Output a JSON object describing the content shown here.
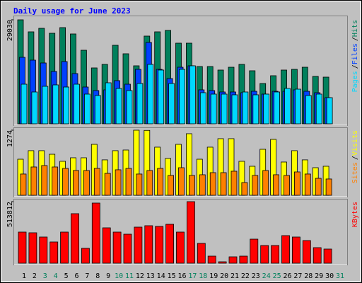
{
  "chart_data": [
    {
      "type": "bar",
      "title": "Daily usage for June 2023",
      "ylim": [
        0,
        29030
      ],
      "yticks": [
        29030
      ],
      "legend_separator": "/",
      "series": [
        {
          "name": "Hits",
          "color": "#00805C",
          "values": [
            29030,
            25675,
            26663,
            25280,
            26860,
            25083,
            20540,
            15603,
            16590,
            21923,
            19553,
            16195,
            24490,
            25675,
            26070,
            22515,
            22515,
            15998,
            15998,
            15010,
            15800,
            16590,
            14813,
            11258,
            13430,
            15010,
            15208,
            15800,
            13233,
            13035,
            null
          ]
        },
        {
          "name": "Files",
          "color": "#0040FF",
          "values": [
            18565,
            17775,
            16985,
            14615,
            17380,
            14023,
            10270,
            9283,
            9480,
            12048,
            11060,
            15208,
            22713,
            15208,
            12640,
            15800,
            16195,
            9480,
            9283,
            8888,
            8888,
            8690,
            9085,
            8295,
            9085,
            9085,
            9480,
            9085,
            8690,
            7308,
            null
          ]
        },
        {
          "name": "Pages",
          "color": "#00D8FF",
          "values": [
            11060,
            8888,
            10468,
            10863,
            10270,
            11060,
            8295,
            7900,
            11455,
            9875,
            9283,
            11258,
            16590,
            15010,
            11258,
            15208,
            16195,
            8690,
            8295,
            8295,
            8098,
            8888,
            8098,
            8295,
            8888,
            9875,
            9678,
            7900,
            8295,
            7308,
            null
          ]
        }
      ]
    },
    {
      "type": "bar",
      "ylim": [
        0,
        1274
      ],
      "yticks": [
        1274
      ],
      "legend_separator": "/",
      "series": [
        {
          "name": "Visits",
          "color": "#FFFF00",
          "values": [
            706,
            873,
            873,
            803,
            665,
            734,
            734,
            997,
            693,
            873,
            886,
            1274,
            1270,
            942,
            720,
            997,
            1205,
            706,
            942,
            1108,
            1108,
            665,
            568,
            900,
            1094,
            651,
            873,
            693,
            540,
            568,
            null
          ]
        },
        {
          "name": "Sites",
          "color": "#FF8000",
          "values": [
            416,
            554,
            582,
            554,
            526,
            485,
            485,
            526,
            429,
            499,
            526,
            416,
            485,
            526,
            388,
            540,
            388,
            402,
            443,
            443,
            471,
            249,
            388,
            485,
            402,
            388,
            457,
            416,
            332,
            319,
            null
          ]
        }
      ]
    },
    {
      "type": "bar",
      "ylim": [
        0,
        513812
      ],
      "yticks": [
        513812
      ],
      "series": [
        {
          "name": "KBytes",
          "color": "#FF0000",
          "values": [
            259864,
            253958,
            218522,
            177180,
            259864,
            413420,
            124026,
            502010,
            295300,
            259864,
            242146,
            301206,
            313018,
            307112,
            324830,
            259864,
            513812,
            165368,
            59060,
            11812,
            53154,
            59060,
            200804,
            147650,
            147650,
            230334,
            218522,
            188992,
            129932,
            118120,
            null
          ]
        }
      ],
      "categories": [
        "1",
        "2",
        "3",
        "4",
        "5",
        "6",
        "7",
        "8",
        "9",
        "10",
        "11",
        "12",
        "13",
        "14",
        "15",
        "16",
        "17",
        "18",
        "19",
        "20",
        "21",
        "22",
        "23",
        "24",
        "25",
        "26",
        "27",
        "28",
        "29",
        "30",
        "31"
      ],
      "category_colors": [
        "#000000",
        "#000000",
        "#00805C",
        "#00805C",
        "#000000",
        "#000000",
        "#000000",
        "#000000",
        "#000000",
        "#00805C",
        "#00805C",
        "#000000",
        "#000000",
        "#000000",
        "#000000",
        "#000000",
        "#00805C",
        "#00805C",
        "#000000",
        "#000000",
        "#000000",
        "#000000",
        "#000000",
        "#00805C",
        "#00805C",
        "#000000",
        "#000000",
        "#000000",
        "#000000",
        "#000000",
        "#00805C"
      ]
    }
  ]
}
